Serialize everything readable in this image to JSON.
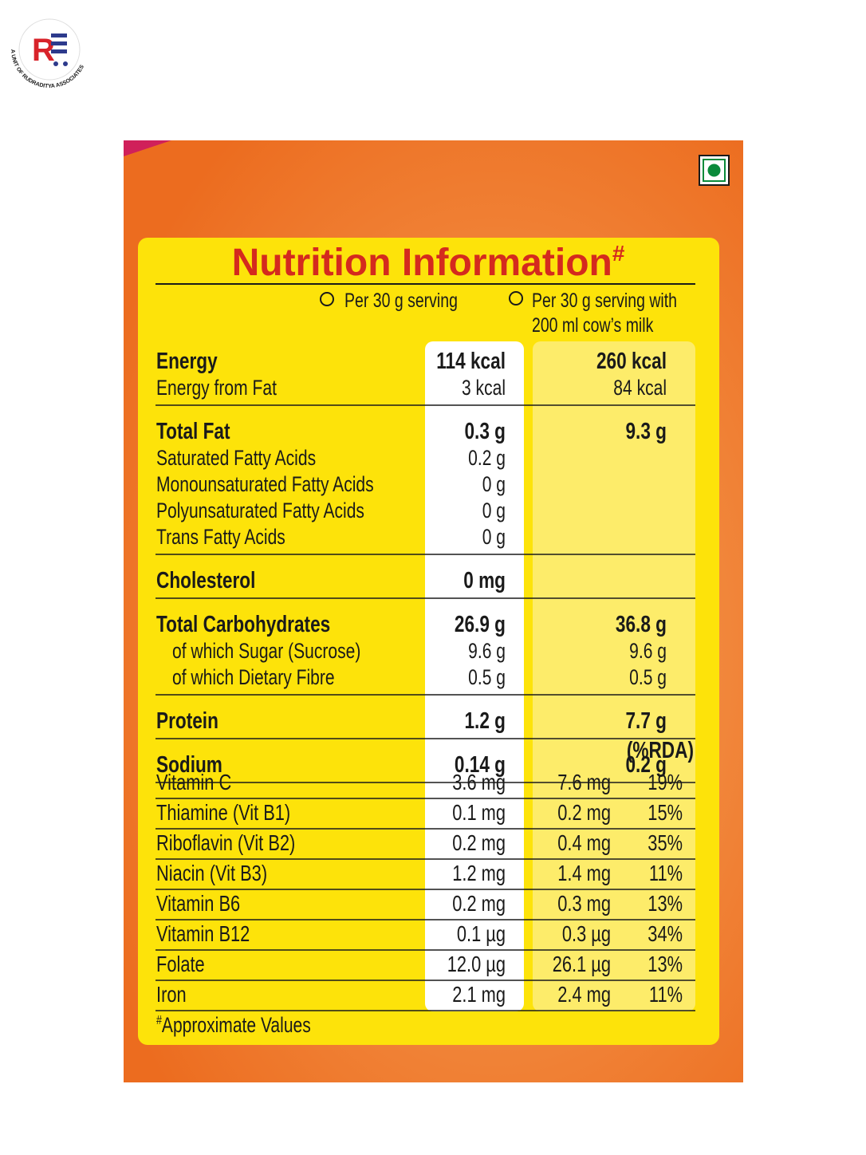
{
  "logo": {
    "tagline": "A UNIT OF RUDRADITYA ASSOCIATES"
  },
  "title": "Nutrition Information",
  "title_mark": "#",
  "columns": [
    {
      "lines": [
        "Per 30 g serving"
      ]
    },
    {
      "lines": [
        "Per 30 g serving with",
        "200 ml cow’s milk"
      ]
    }
  ],
  "nutrients": [
    {
      "main": {
        "label": "Energy",
        "serving": "114 kcal",
        "milk": "260 kcal"
      },
      "details": [
        {
          "label": "Energy from Fat",
          "serving": "3 kcal",
          "milk": "84 kcal"
        }
      ]
    },
    {
      "main": {
        "label": "Total Fat",
        "serving": "0.3 g",
        "milk": "9.3 g"
      },
      "details": [
        {
          "label": "Saturated Fatty Acids",
          "serving": "0.2 g"
        },
        {
          "label": "Monounsaturated Fatty Acids",
          "serving": "0 g"
        },
        {
          "label": "Polyunsaturated Fatty Acids",
          "serving": "0 g"
        },
        {
          "label": "Trans Fatty Acids",
          "serving": "0 g"
        }
      ]
    },
    {
      "main": {
        "label": "Cholesterol",
        "serving": "0 mg"
      }
    },
    {
      "main": {
        "label": "Total Carbohydrates",
        "serving": "26.9 g",
        "milk": "36.8 g"
      },
      "of_which": [
        {
          "label": "of which Sugar (Sucrose)",
          "serving": "9.6 g",
          "milk": "9.6 g"
        },
        {
          "label": "of which Dietary Fibre",
          "serving": "0.5 g",
          "milk": "0.5 g"
        }
      ]
    },
    {
      "main": {
        "label": "Protein",
        "serving": "1.2 g",
        "milk": "7.7 g"
      }
    },
    {
      "main": {
        "label": "Sodium",
        "serving": "0.14 g",
        "milk": "0.2 g"
      }
    }
  ],
  "rda_header": "(%RDA)",
  "vitamins": [
    {
      "label": "Vitamin C",
      "serving": "3.6 mg",
      "milk": "7.6 mg",
      "rda": "19%"
    },
    {
      "label": "Thiamine (Vit B1)",
      "serving": "0.1 mg",
      "milk": "0.2 mg",
      "rda": "15%"
    },
    {
      "label": "Riboflavin (Vit B2)",
      "serving": "0.2 mg",
      "milk": "0.4 mg",
      "rda": "35%"
    },
    {
      "label": "Niacin (Vit B3)",
      "serving": "1.2 mg",
      "milk": "1.4 mg",
      "rda": "11%"
    },
    {
      "label": "Vitamin B6",
      "serving": "0.2 mg",
      "milk": "0.3 mg",
      "rda": "13%"
    },
    {
      "label": "Vitamin B12",
      "serving": "0.1 µg",
      "milk": "0.3 µg",
      "rda": "34%"
    },
    {
      "label": "Folate",
      "serving": "12.0 µg",
      "milk": "26.1 µg",
      "rda": "13%"
    },
    {
      "label": "Iron",
      "serving": "2.1 mg",
      "milk": "2.4 mg",
      "rda": "11%"
    }
  ],
  "footnote_mark": "#",
  "footnote": "Approximate Values"
}
